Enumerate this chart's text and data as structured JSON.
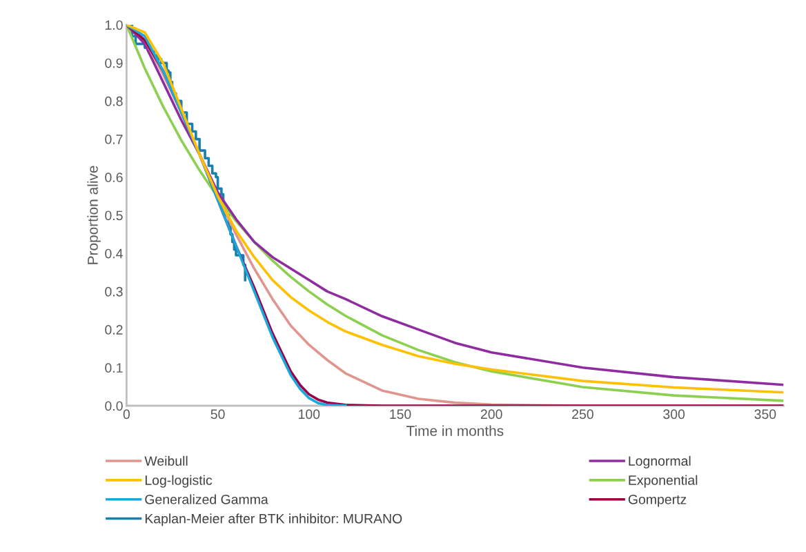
{
  "chart_data": {
    "type": "line",
    "xlabel": "Time in months",
    "ylabel": "Proportion alive",
    "xlim": [
      0,
      360
    ],
    "xticks": [
      0,
      50,
      100,
      150,
      200,
      250,
      300,
      350
    ],
    "ylim": [
      0,
      1.0
    ],
    "yticks": [
      {
        "value": 0,
        "label": "0.0"
      },
      {
        "value": 0.1,
        "label": "0.1"
      },
      {
        "value": 0.2,
        "label": "0.2"
      },
      {
        "value": 0.3,
        "label": "0.3"
      },
      {
        "value": 0.4,
        "label": "0.4"
      },
      {
        "value": 0.5,
        "label": "0.5"
      },
      {
        "value": 0.6,
        "label": "0.6"
      },
      {
        "value": 0.7,
        "label": "0.7"
      },
      {
        "value": 0.8,
        "label": "0.8"
      },
      {
        "value": 0.9,
        "label": "0.9"
      },
      {
        "value": 1.0,
        "label": "1.0"
      }
    ],
    "grid": false,
    "legend": "bottom",
    "marker": "none",
    "line_style": "solid",
    "x": [
      0,
      10,
      20,
      30,
      40,
      50,
      60,
      70,
      80,
      90,
      100,
      110,
      120,
      140,
      160,
      180,
      200,
      250,
      300,
      360
    ],
    "series": [
      {
        "name": "Weibull",
        "color": "#e0968e",
        "values": [
          1,
          0.96,
          0.87,
          0.77,
          0.66,
          0.55,
          0.45,
          0.36,
          0.28,
          0.21,
          0.16,
          0.12,
          0.085,
          0.04,
          0.018,
          0.008,
          0.003,
          0,
          0,
          0
        ]
      },
      {
        "name": "Lognormal",
        "color": "#8e2ca0",
        "values": [
          1,
          0.95,
          0.85,
          0.75,
          0.66,
          0.56,
          0.49,
          0.43,
          0.39,
          0.36,
          0.33,
          0.3,
          0.28,
          0.235,
          0.2,
          0.165,
          0.14,
          0.1,
          0.075,
          0.055
        ]
      },
      {
        "name": "Log-logistic",
        "color": "#ffc000",
        "values": [
          1,
          0.98,
          0.9,
          0.78,
          0.66,
          0.55,
          0.46,
          0.39,
          0.33,
          0.285,
          0.25,
          0.22,
          0.195,
          0.16,
          0.13,
          0.11,
          0.095,
          0.065,
          0.048,
          0.035
        ]
      },
      {
        "name": "Exponential",
        "color": "#8dcf4f",
        "values": [
          1,
          0.886,
          0.786,
          0.697,
          0.618,
          0.547,
          0.485,
          0.43,
          0.381,
          0.338,
          0.3,
          0.266,
          0.236,
          0.185,
          0.146,
          0.114,
          0.09,
          0.049,
          0.027,
          0.013
        ]
      },
      {
        "name": "Generalized Gamma",
        "color": "#1aa7dc",
        "x": [
          0,
          10,
          20,
          30,
          40,
          50,
          60,
          70,
          80,
          90,
          95,
          100,
          105,
          110,
          120
        ],
        "values": [
          1,
          0.97,
          0.88,
          0.77,
          0.66,
          0.54,
          0.42,
          0.3,
          0.18,
          0.08,
          0.045,
          0.02,
          0.007,
          0.002,
          0
        ]
      },
      {
        "name": "Gompertz",
        "color": "#9b0047",
        "x": [
          0,
          10,
          20,
          30,
          40,
          50,
          60,
          70,
          80,
          90,
          95,
          100,
          105,
          110,
          120,
          140,
          360
        ],
        "values": [
          1,
          0.96,
          0.88,
          0.77,
          0.66,
          0.54,
          0.42,
          0.31,
          0.19,
          0.09,
          0.055,
          0.03,
          0.016,
          0.008,
          0.002,
          0,
          0
        ]
      },
      {
        "name": "Kaplan-Meier after BTK inhibitor: MURANO",
        "color": "#1a7fad",
        "type": "step",
        "x": [
          0,
          3,
          5,
          10,
          12,
          15,
          17,
          19,
          22,
          23,
          24,
          25,
          27,
          30,
          33,
          36,
          38,
          40,
          43,
          45,
          47,
          49,
          50,
          52,
          53,
          54,
          56,
          57,
          58,
          59,
          60,
          63,
          64,
          65
        ],
        "values": [
          1,
          0.97,
          0.95,
          0.94,
          0.93,
          0.92,
          0.91,
          0.9,
          0.88,
          0.875,
          0.85,
          0.82,
          0.8,
          0.77,
          0.74,
          0.72,
          0.7,
          0.67,
          0.65,
          0.63,
          0.61,
          0.6,
          0.57,
          0.555,
          0.53,
          0.5,
          0.47,
          0.45,
          0.43,
          0.41,
          0.395,
          0.395,
          0.37,
          0.33
        ]
      }
    ]
  }
}
